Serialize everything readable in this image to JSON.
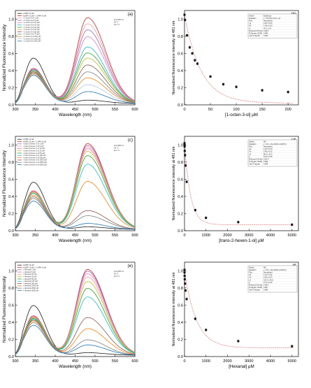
{
  "figure_title": "",
  "chart_data": [
    {
      "type": "line",
      "panel": "(a)",
      "xlabel": "Wavelength (nm)",
      "ylabel": "Normalized Fluorescence Intensity",
      "xlim": [
        300,
        600
      ],
      "ylim": [
        0,
        1.1
      ],
      "xticks": [
        "300",
        "350",
        "400",
        "450",
        "500",
        "550",
        "600"
      ],
      "yticks": [
        "0.0",
        "0.2",
        "0.4",
        "0.6",
        "0.8",
        "1.0"
      ],
      "grid": false,
      "legend_position": "top-left",
      "note": [
        "λex=295 nm",
        "25 °C",
        "pH 7.4"
      ],
      "series": [
        {
          "name": "ecOBP 10 µM",
          "color": "#1a1a1a",
          "uv": 0.53,
          "peak": 0.04
        },
        {
          "name": "ecOBP 10 µM + 1-NPN 6 µM",
          "color": "#d62728",
          "uv": 0.41,
          "peak": 1.0
        },
        {
          "name": "+ 1-octen-3-ol 1 µM",
          "color": "#ff9896",
          "uv": 0.4,
          "peak": 0.93
        },
        {
          "name": "+ 1-octen-3-ol 5 µM",
          "color": "#9467bd",
          "uv": 0.4,
          "peak": 0.86
        },
        {
          "name": "+ 1-octen-3-ol 10 µM",
          "color": "#e377c2",
          "uv": 0.39,
          "peak": 0.78
        },
        {
          "name": "+ 1-octen-3-ol 15 µM",
          "color": "#17becf",
          "uv": 0.39,
          "peak": 0.66
        },
        {
          "name": "+ 1-octen-3-ol 20 µM",
          "color": "#2ca02c",
          "uv": 0.38,
          "peak": 0.59
        },
        {
          "name": "+ 1-octen-3-ol 25 µM",
          "color": "#bcbd22",
          "uv": 0.38,
          "peak": 0.53
        },
        {
          "name": "+ 1-octen-3-ol 50 µM",
          "color": "#8c564b",
          "uv": 0.37,
          "peak": 0.45
        },
        {
          "name": "+ 1-octen-3-ol 75 µM",
          "color": "#7f7f7f",
          "uv": 0.36,
          "peak": 0.37
        },
        {
          "name": "+ 1-octen-3-ol 100 µM",
          "color": "#ff7f0e",
          "uv": 0.35,
          "peak": 0.3
        },
        {
          "name": "+ 1-octen-3-ol 150 µM",
          "color": "#aec7e8",
          "uv": 0.34,
          "peak": 0.22
        },
        {
          "name": "+ 1-octen-3-ol 200 µM",
          "color": "#1f77b4",
          "uv": 0.33,
          "peak": 0.14
        }
      ]
    },
    {
      "type": "scatter",
      "panel": "(b)",
      "xlabel": "[1-octen-3-ol] µM",
      "ylabel": "Normalized fluorescence intensity at 481 nm",
      "xlim": [
        0,
        220
      ],
      "ylim": [
        0,
        1.1
      ],
      "xticks": [
        "0",
        "50",
        "100",
        "150",
        "200"
      ],
      "yticks": [
        "0.0",
        "0.2",
        "0.4",
        "0.6",
        "0.8",
        "1.0"
      ],
      "grid": false,
      "x": [
        0,
        1,
        5,
        10,
        15,
        20,
        25,
        50,
        75,
        100,
        150,
        200
      ],
      "y": [
        1.05,
        0.99,
        0.81,
        0.67,
        0.6,
        0.52,
        0.48,
        0.33,
        0.24,
        0.21,
        0.17,
        0.15
      ],
      "fit": {
        "Kd": 32,
        "y0": 0.02,
        "A": 1.03,
        "color": "#e8453c"
      },
      "table": [
        [
          "Model",
          "ExpDecay"
        ],
        [
          "Equation",
          "y = A1*exp(-x/t1) + y0"
        ],
        [
          "Plot",
          "Normalized"
        ],
        [
          "y0",
          "0.02 ± 0.03"
        ],
        [
          "A1",
          "1.03 ± 0.03"
        ],
        [
          "t1",
          "32.1 ± 2.5"
        ],
        [
          "Reduced Chi-Sqr",
          "4.2E-4"
        ],
        [
          "R-Square (COD)",
          "0.994"
        ],
        [
          "Adj. R-Square",
          "0.992"
        ]
      ]
    },
    {
      "type": "line",
      "panel": "(c)",
      "xlabel": "Wavelength (nm)",
      "ylabel": "Normalized Fluorescence Intensity",
      "xlim": [
        300,
        600
      ],
      "ylim": [
        0,
        1.1
      ],
      "xticks": [
        "300",
        "350",
        "400",
        "450",
        "500",
        "550",
        "600"
      ],
      "yticks": [
        "0.0",
        "0.2",
        "0.4",
        "0.6",
        "0.8",
        "1.0"
      ],
      "grid": false,
      "legend_position": "top-left",
      "note": [
        "λex=295 nm",
        "25 °C",
        "pH 7.4"
      ],
      "series": [
        {
          "name": "ecOBP 10 µM",
          "color": "#1a1a1a",
          "uv": 0.55,
          "peak": 0.03
        },
        {
          "name": "ecOBP 10 µM + 1-NPN 6 µM",
          "color": "#d62728",
          "uv": 0.45,
          "peak": 1.0
        },
        {
          "name": "+ trans-2-hexen-1-ol 1 µM",
          "color": "#9467bd",
          "uv": 0.44,
          "peak": 0.98
        },
        {
          "name": "+ trans-2-hexen-1-ol 5 µM",
          "color": "#ff9896",
          "uv": 0.44,
          "peak": 0.96
        },
        {
          "name": "+ trans-2-hexen-1-ol 10 µM",
          "color": "#e377c2",
          "uv": 0.43,
          "peak": 0.94
        },
        {
          "name": "+ trans-2-hexen-1-ol 25 µM",
          "color": "#bcbd22",
          "uv": 0.43,
          "peak": 0.91
        },
        {
          "name": "+ trans-2-hexen-1-ol 50 µM",
          "color": "#2ca02c",
          "uv": 0.42,
          "peak": 0.86
        },
        {
          "name": "+ trans-2-hexen-1-ol 100 µM",
          "color": "#17becf",
          "uv": 0.42,
          "peak": 0.76
        },
        {
          "name": "+ trans-2-hexen-1-ol 500 µM",
          "color": "#ff7f0e",
          "uv": 0.4,
          "peak": 0.56
        },
        {
          "name": "+ trans-2-hexen-1-ol 1000 µM",
          "color": "#8c564b",
          "uv": 0.38,
          "peak": 0.22
        },
        {
          "name": "+ trans-2-hexen-1-ol 2500 µM",
          "color": "#7f7f7f",
          "uv": 0.36,
          "peak": 0.16
        },
        {
          "name": "+ trans-2-hexen-1-ol 5000 µM",
          "color": "#1f77b4",
          "uv": 0.33,
          "peak": 0.07
        }
      ]
    },
    {
      "type": "scatter",
      "panel": "(d)",
      "xlabel": "[trans-2-hexen-1-ol] µM",
      "ylabel": "Normalized fluorescence intensity at 481 nm",
      "xlim": [
        0,
        5300
      ],
      "ylim": [
        0,
        1.1
      ],
      "xticks": [
        "0",
        "1000",
        "2000",
        "3000",
        "4000",
        "5000"
      ],
      "yticks": [
        "0.0",
        "0.2",
        "0.4",
        "0.6",
        "0.8",
        "1.0"
      ],
      "grid": false,
      "x": [
        0,
        1,
        5,
        10,
        25,
        50,
        100,
        500,
        1000,
        2500,
        5000
      ],
      "y": [
        1.02,
        1.0,
        0.98,
        0.93,
        0.88,
        0.76,
        0.57,
        0.24,
        0.15,
        0.1,
        0.07
      ],
      "fit": {
        "Kd": 280,
        "y0": 0.07,
        "A": 0.95,
        "color": "#e8453c"
      },
      "table": [
        [
          "Model",
          "Hill"
        ],
        [
          "Equation",
          "y = A2 + (A1-A2)/(1+(x/x0)^p)"
        ],
        [
          "Plot",
          "Normalized"
        ],
        [
          "A1",
          "1.02 ± 0.03"
        ],
        [
          "A2",
          "0.06 ± 0.02"
        ],
        [
          "x0",
          "88.3 ± 12.6"
        ],
        [
          "p",
          "0.97 ± 0.09"
        ],
        [
          "Reduced Chi-Sqr",
          "3.1E-4"
        ],
        [
          "R-Square (COD)",
          "0.996"
        ],
        [
          "Adj. R-Square",
          "0.994"
        ]
      ]
    },
    {
      "type": "line",
      "panel": "(e)",
      "xlabel": "Wavelength (nm)",
      "ylabel": "Normalized Fluorescence Intensity",
      "xlim": [
        300,
        600
      ],
      "ylim": [
        0,
        1.1
      ],
      "xticks": [
        "300",
        "350",
        "400",
        "450",
        "500",
        "550",
        "600"
      ],
      "yticks": [
        "0.0",
        "0.2",
        "0.4",
        "0.6",
        "0.8",
        "1.0"
      ],
      "grid": false,
      "legend_position": "top-left",
      "note": [
        "λex=295 nm",
        "25 °C",
        "pH 7.4"
      ],
      "series": [
        {
          "name": "ecOBP 10 µM",
          "color": "#1a1a1a",
          "uv": 0.58,
          "peak": 0.03
        },
        {
          "name": "ecOBP 10 µM + 1-NPN 6 µM",
          "color": "#d62728",
          "uv": 0.46,
          "peak": 1.0
        },
        {
          "name": "+ Hexanal 1 µM",
          "color": "#9467bd",
          "uv": 0.45,
          "peak": 0.98
        },
        {
          "name": "+ Hexanal 5 µM",
          "color": "#e377c2",
          "uv": 0.45,
          "peak": 0.95
        },
        {
          "name": "+ Hexanal 10 µM",
          "color": "#ff9896",
          "uv": 0.44,
          "peak": 0.91
        },
        {
          "name": "+ Hexanal 25 µM",
          "color": "#bcbd22",
          "uv": 0.44,
          "peak": 0.86
        },
        {
          "name": "+ Hexanal 50 µM",
          "color": "#2ca02c",
          "uv": 0.43,
          "peak": 0.78
        },
        {
          "name": "+ Hexanal 100 µM",
          "color": "#17becf",
          "uv": 0.42,
          "peak": 0.68
        },
        {
          "name": "+ Hexanal 500 µM",
          "color": "#8c564b",
          "uv": 0.41,
          "peak": 0.44
        },
        {
          "name": "+ Hexanal 1000 µM",
          "color": "#ff7f0e",
          "uv": 0.4,
          "peak": 0.31
        },
        {
          "name": "+ Hexanal 2500 µM",
          "color": "#7f7f7f",
          "uv": 0.38,
          "peak": 0.18
        },
        {
          "name": "+ Hexanal 5000 µM",
          "color": "#1f77b4",
          "uv": 0.35,
          "peak": 0.12
        }
      ]
    },
    {
      "type": "scatter",
      "panel": "(f)",
      "xlabel": "[Hexanal] µM",
      "ylabel": "Normalized fluorescence intensity at 481 nm",
      "xlim": [
        0,
        5300
      ],
      "ylim": [
        0,
        1.1
      ],
      "xticks": [
        "0",
        "1000",
        "2000",
        "3000",
        "4000",
        "5000"
      ],
      "yticks": [
        "0.0",
        "0.2",
        "0.4",
        "0.6",
        "0.8",
        "1.0"
      ],
      "grid": false,
      "x": [
        0,
        1,
        5,
        10,
        25,
        50,
        100,
        500,
        1000,
        2500,
        5000
      ],
      "y": [
        1.01,
        0.98,
        0.94,
        0.9,
        0.85,
        0.77,
        0.67,
        0.44,
        0.31,
        0.18,
        0.12
      ],
      "fit": {
        "Kd": 550,
        "y0": 0.1,
        "A": 0.9,
        "color": "#e8453c"
      },
      "table": [
        [
          "Model",
          "Hill"
        ],
        [
          "Equation",
          "y = A2 + (A1-A2)/(1+(x/x0)^p)"
        ],
        [
          "Plot",
          "Normalized"
        ],
        [
          "A1",
          "1.01 ± 0.02"
        ],
        [
          "A2",
          "0.09 ± 0.03"
        ],
        [
          "x0",
          "312.4 ± 40.8"
        ],
        [
          "p",
          "0.71 ± 0.05"
        ],
        [
          "Reduced Chi-Sqr",
          "2.4E-4"
        ],
        [
          "R-Square (COD)",
          "0.997"
        ],
        [
          "Adj. R-Square",
          "0.995"
        ]
      ]
    }
  ]
}
